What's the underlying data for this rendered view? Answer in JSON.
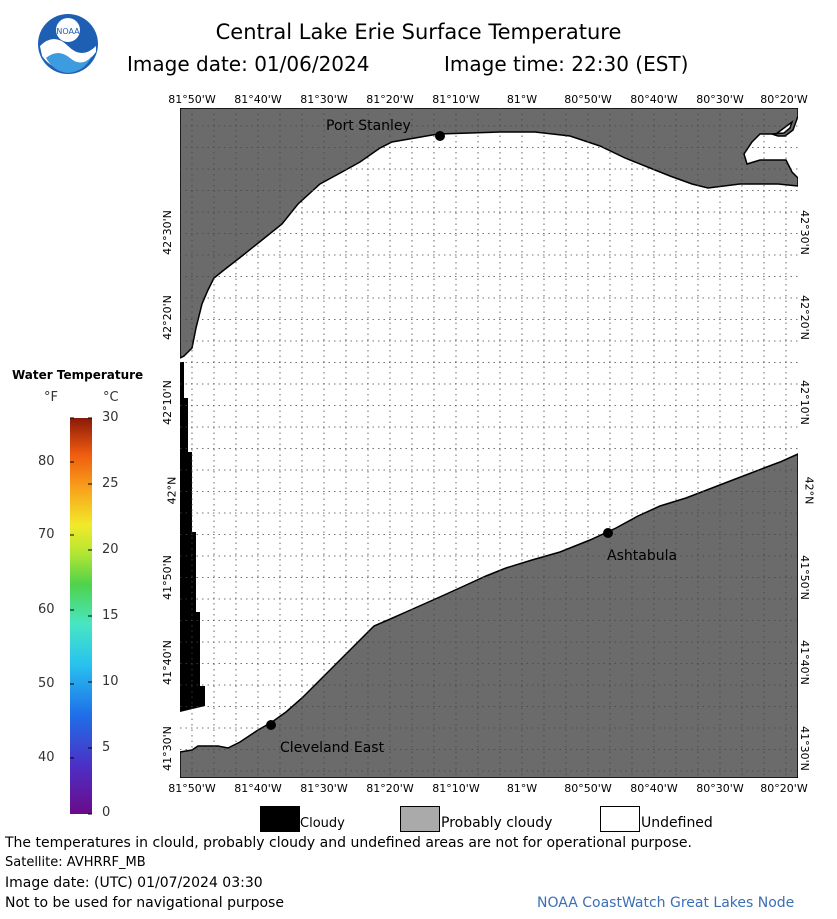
{
  "header": {
    "title": "Central Lake Erie Surface Temperature",
    "date_label": "Image date: 01/06/2024",
    "time_label": "Image time: 22:30 (EST)",
    "logo_text": "NOAA"
  },
  "map": {
    "lon_labels": [
      "81°50'W",
      "81°40'W",
      "81°30'W",
      "81°20'W",
      "81°10'W",
      "81°W",
      "80°50'W",
      "80°40'W",
      "80°30'W",
      "80°20'W"
    ],
    "lat_labels": [
      "42°30'N",
      "42°20'N",
      "42°10'N",
      "42°N",
      "41°50'N",
      "41°40'N",
      "41°30'N"
    ],
    "places": [
      {
        "name": "Port Stanley"
      },
      {
        "name": "Ashtabula"
      },
      {
        "name": "Cleveland East"
      }
    ],
    "colors": {
      "land": "#6b6b6b",
      "water_undefined": "#ffffff",
      "cloudy": "#000000",
      "grid": "#444444"
    }
  },
  "legend": {
    "title": "Water Temperature",
    "unit_f": "°F",
    "unit_c": "°C",
    "f_ticks": [
      "80",
      "70",
      "60",
      "50",
      "40"
    ],
    "c_ticks": [
      "30",
      "25",
      "20",
      "15",
      "10",
      "5",
      "0"
    ]
  },
  "key": {
    "cloudy": "Cloudy",
    "probably_cloudy": "Probably cloudy",
    "undefined": "Undefined"
  },
  "footer": {
    "disclaimer": "The temperatures in clould, probably cloudy and undefined areas are not for operational purpose.",
    "satellite": "Satellite: AVHRRF_MB",
    "utc_date": "Image date: (UTC) 01/07/2024  03:30",
    "nav_warning": "Not to be used for navigational purpose",
    "credit": "NOAA CoastWatch Great Lakes Node"
  }
}
